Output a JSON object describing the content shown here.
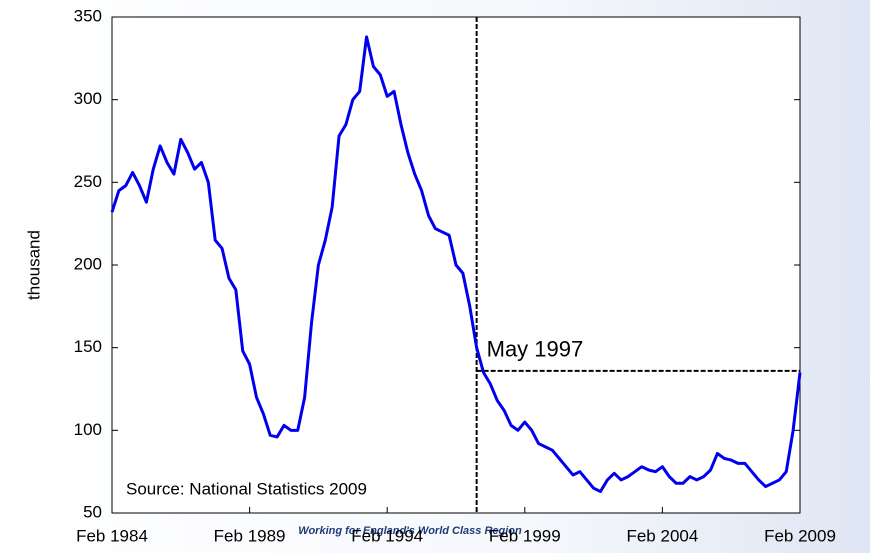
{
  "chart_data": {
    "type": "line",
    "ylabel": "thousand",
    "source": "Source: National Statistics 2009",
    "watermark": "Working for England's World Class Region",
    "color": "#0000ee",
    "x": [
      1984.08,
      1984.33,
      1984.58,
      1984.83,
      1985.08,
      1985.33,
      1985.58,
      1985.83,
      1986.08,
      1986.33,
      1986.58,
      1986.83,
      1987.08,
      1987.33,
      1987.58,
      1987.83,
      1988.08,
      1988.33,
      1988.58,
      1988.83,
      1989.08,
      1989.33,
      1989.58,
      1989.83,
      1990.08,
      1990.33,
      1990.58,
      1990.83,
      1991.08,
      1991.33,
      1991.58,
      1991.83,
      1992.08,
      1992.33,
      1992.58,
      1992.83,
      1993.08,
      1993.33,
      1993.58,
      1993.83,
      1994.08,
      1994.33,
      1994.58,
      1994.83,
      1995.08,
      1995.33,
      1995.58,
      1995.83,
      1996.08,
      1996.33,
      1996.58,
      1996.83,
      1997.08,
      1997.33,
      1997.58,
      1997.83,
      1998.08,
      1998.33,
      1998.58,
      1998.83,
      1999.08,
      1999.33,
      1999.58,
      1999.83,
      2000.08,
      2000.33,
      2000.58,
      2000.83,
      2001.08,
      2001.33,
      2001.58,
      2001.83,
      2002.08,
      2002.33,
      2002.58,
      2002.83,
      2003.08,
      2003.33,
      2003.58,
      2003.83,
      2004.08,
      2004.33,
      2004.58,
      2004.83,
      2005.08,
      2005.33,
      2005.58,
      2005.83,
      2006.08,
      2006.33,
      2006.58,
      2006.83,
      2007.08,
      2007.33,
      2007.58,
      2007.83,
      2008.08,
      2008.33,
      2008.58,
      2008.83,
      2009.08
    ],
    "values": [
      232,
      245,
      248,
      256,
      248,
      238,
      258,
      272,
      262,
      255,
      276,
      268,
      258,
      262,
      250,
      215,
      210,
      192,
      185,
      148,
      140,
      120,
      110,
      97,
      96,
      103,
      100,
      100,
      120,
      165,
      200,
      215,
      235,
      278,
      285,
      300,
      305,
      338,
      320,
      315,
      302,
      305,
      285,
      268,
      255,
      245,
      230,
      222,
      220,
      218,
      200,
      195,
      175,
      150,
      135,
      128,
      118,
      112,
      103,
      100,
      105,
      100,
      92,
      90,
      88,
      83,
      78,
      73,
      75,
      70,
      65,
      63,
      70,
      74,
      70,
      72,
      75,
      78,
      76,
      75,
      78,
      72,
      68,
      68,
      72,
      70,
      72,
      76,
      86,
      83,
      82,
      80,
      80,
      75,
      70,
      66,
      68,
      70,
      75,
      100,
      135
    ],
    "xlim": [
      1984.08,
      2009.08
    ],
    "xticks": [
      {
        "value": 1984.08,
        "label": "Feb 1984"
      },
      {
        "value": 1989.08,
        "label": "Feb 1989"
      },
      {
        "value": 1994.08,
        "label": "Feb 1994"
      },
      {
        "value": 1999.08,
        "label": "Feb 1999"
      },
      {
        "value": 2004.08,
        "label": "Feb 2004"
      },
      {
        "value": 2009.08,
        "label": "Feb 2009"
      }
    ],
    "ylim": [
      50,
      350
    ],
    "yticks": [
      50,
      100,
      150,
      200,
      250,
      300,
      350
    ],
    "annotation": {
      "text": "May 1997",
      "x": 1997.33,
      "y": 136
    }
  }
}
